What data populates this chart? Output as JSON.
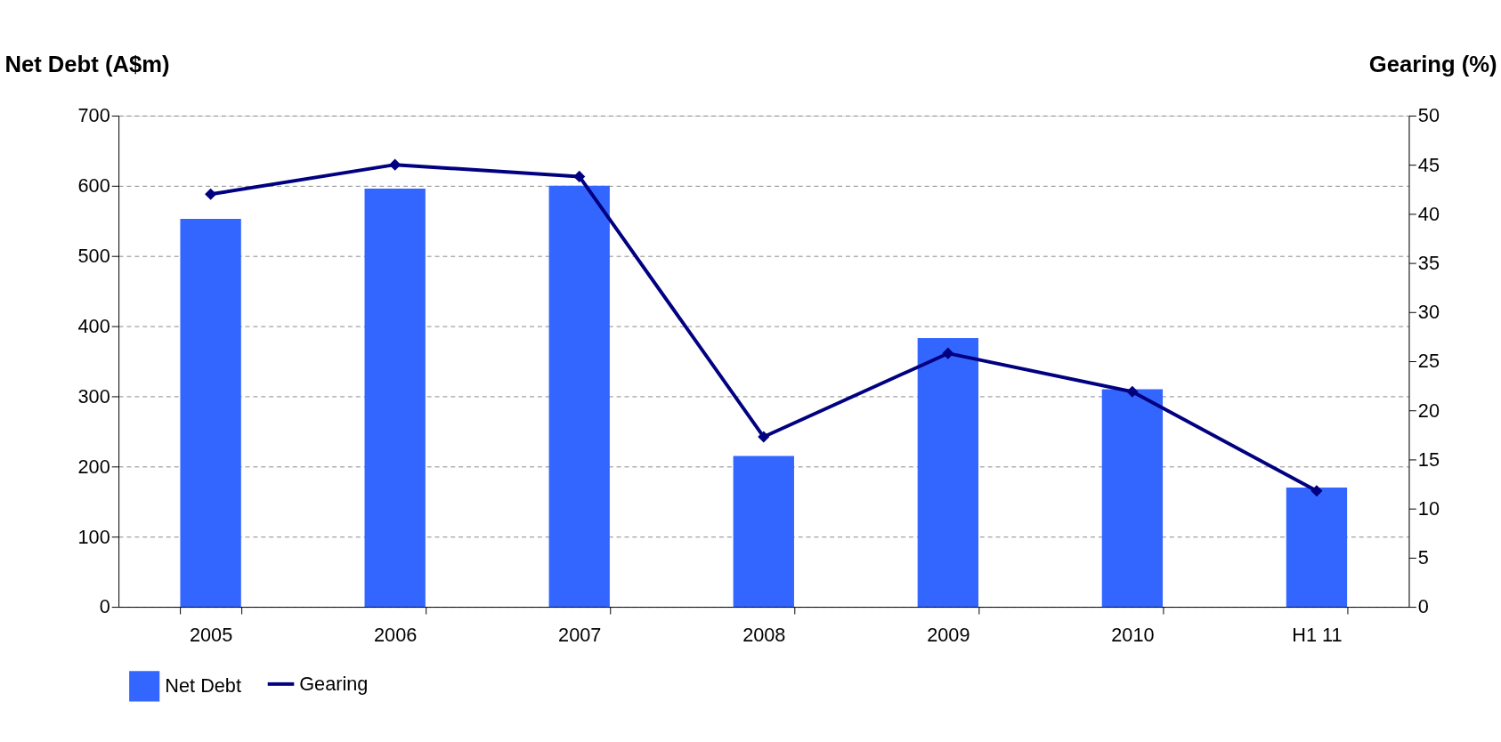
{
  "chart_data": {
    "type": "bar",
    "ylabel": "Net Debt (A$m)",
    "y2label": "Gearing (%)",
    "categories": [
      "2005",
      "2006",
      "2007",
      "2008",
      "2009",
      "2010",
      "H1 11"
    ],
    "series": [
      {
        "name": "Net Debt",
        "color": "#3366ff",
        "values": [
          553,
          596,
          600,
          215,
          383,
          310,
          170
        ]
      },
      {
        "name": "Gearing",
        "type": "line",
        "axis": "y2",
        "color": "#000080",
        "values": [
          42,
          45,
          43.8,
          17.3,
          25.8,
          21.9,
          11.8
        ]
      }
    ],
    "ylim": [
      0,
      700
    ],
    "yticks": [
      0,
      100,
      200,
      300,
      400,
      500,
      600,
      700
    ],
    "y2lim": [
      0,
      50
    ],
    "y2ticks": [
      0,
      5,
      10,
      15,
      20,
      25,
      30,
      35,
      40,
      45,
      50
    ],
    "grid": "y",
    "legend": "bottom",
    "marker": "diamond",
    "line_style": "solid"
  }
}
